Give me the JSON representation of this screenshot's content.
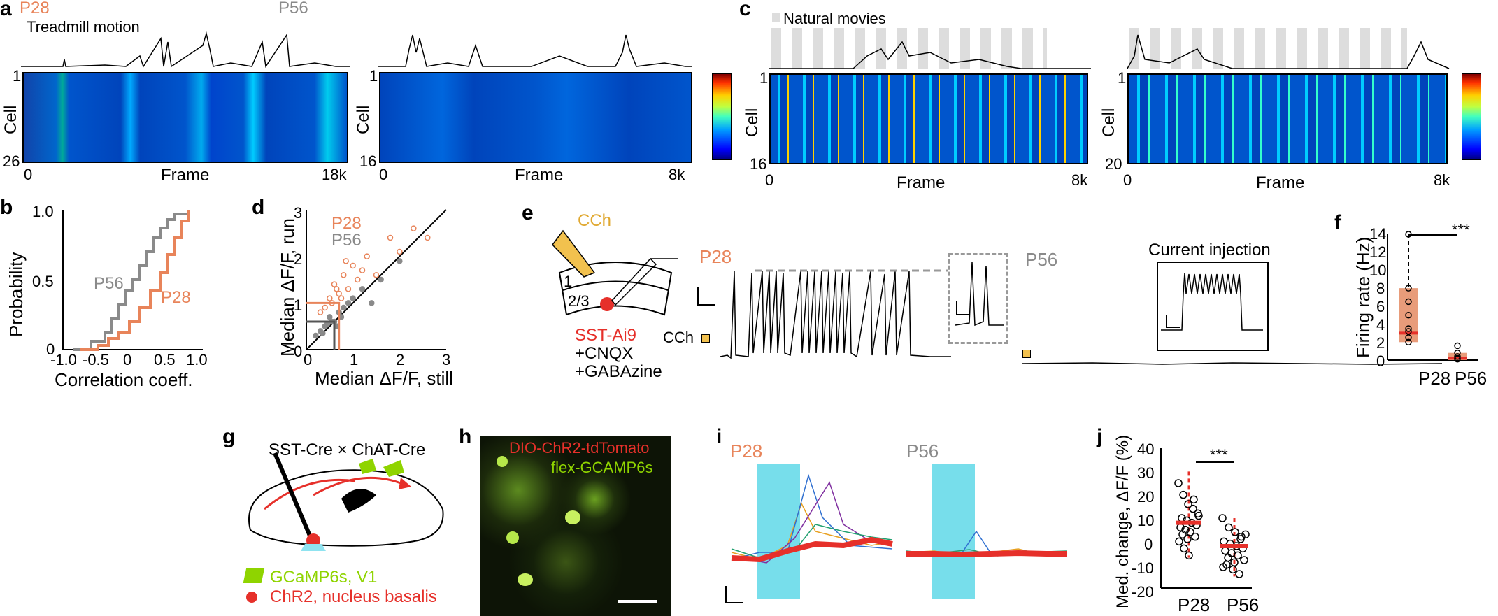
{
  "labels": {
    "a": "a",
    "b": "b",
    "c": "c",
    "d": "d",
    "e": "e",
    "f": "f",
    "g": "g",
    "h": "h",
    "i": "i",
    "j": "j"
  },
  "panel_a": {
    "p28": "P28",
    "p56": "P56",
    "treadmill": "Treadmill motion",
    "cell": "Cell",
    "frame": "Frame",
    "left": {
      "y_top": "1",
      "y_bottom": "26",
      "x_start": "0",
      "x_end": "18k"
    },
    "right": {
      "y_top": "1",
      "y_bottom": "16",
      "x_start": "0",
      "x_end": "8k"
    }
  },
  "panel_c": {
    "natural_movies": "Natural movies",
    "cell": "Cell",
    "frame": "Frame",
    "left": {
      "y_top": "1",
      "y_bottom": "16",
      "x_start": "0",
      "x_end": "8k"
    },
    "right": {
      "y_top": "1",
      "y_bottom": "20",
      "x_start": "0",
      "x_end": "8k"
    }
  },
  "panel_b": {
    "ylabel": "Probability",
    "xlabel": "Correlation coeff.",
    "yticks": [
      "1.0",
      "0.5",
      "0"
    ],
    "xticks": [
      "-1.0",
      "-0.5",
      "0",
      "0.5",
      "1.0"
    ],
    "p56": "P56",
    "p28": "P28"
  },
  "panel_d": {
    "ylabel": "Median ΔF/F, run",
    "xlabel": "Median ΔF/F, still",
    "yticks": [
      "3",
      "2",
      "1",
      "0"
    ],
    "xticks": [
      "0",
      "1",
      "2",
      "3"
    ],
    "p28": "P28",
    "p56": "P56"
  },
  "panel_e": {
    "cch": "CCh",
    "layer1": "1",
    "layer23": "2/3",
    "sst": "SST-Ai9",
    "cnqx": "+CNQX",
    "gabazine": "+GABAzine",
    "p28": "P28",
    "p56": "P56",
    "cch_marker": "CCh",
    "current_injection": "Current injection"
  },
  "panel_f": {
    "ylabel": "Firing rate (Hz)",
    "yticks": [
      "14",
      "12",
      "10",
      "8",
      "6",
      "4",
      "2",
      "0"
    ],
    "p28": "P28",
    "p56": "P56",
    "sig": "***"
  },
  "panel_g": {
    "title": "SST-Cre × ChAT-Cre",
    "legend_gcamp": "GCaMP6s, V1",
    "legend_chr2": "ChR2, nucleus basalis"
  },
  "panel_h": {
    "dio": "DIO-ChR2-tdTomato",
    "flex": "flex-GCAMP6s"
  },
  "panel_i": {
    "p28": "P28",
    "p56": "P56"
  },
  "panel_j": {
    "ylabel": "Med. change, ΔF/F (%)",
    "yticks": [
      "40",
      "30",
      "20",
      "10",
      "0",
      "-10",
      "-20"
    ],
    "p28": "P28",
    "p56": "P56",
    "sig": "***"
  },
  "colors": {
    "p28": "#e8845a",
    "p56": "#8a8a8a",
    "highlight": "#e6302a",
    "light_stim": "#5fd8e8"
  },
  "chart_data": [
    {
      "type": "line",
      "title": "b",
      "xlabel": "Correlation coeff.",
      "ylabel": "Probability",
      "xlim": [
        -1.0,
        1.0
      ],
      "ylim": [
        0,
        1.0
      ],
      "series": [
        {
          "name": "P56",
          "x": [
            -0.85,
            -0.6,
            -0.4,
            -0.3,
            -0.2,
            -0.1,
            0.0,
            0.1,
            0.2,
            0.3,
            0.4,
            0.5,
            0.6,
            0.8
          ],
          "y": [
            0,
            0.06,
            0.12,
            0.22,
            0.32,
            0.42,
            0.5,
            0.6,
            0.7,
            0.8,
            0.87,
            0.93,
            0.97,
            1.0
          ]
        },
        {
          "name": "P28",
          "x": [
            -0.75,
            -0.5,
            -0.35,
            -0.2,
            -0.05,
            0.1,
            0.25,
            0.4,
            0.5,
            0.6,
            0.7,
            0.8
          ],
          "y": [
            0,
            0.03,
            0.08,
            0.12,
            0.2,
            0.3,
            0.42,
            0.55,
            0.68,
            0.8,
            0.92,
            1.0
          ]
        }
      ]
    },
    {
      "type": "scatter",
      "title": "d",
      "xlabel": "Median ΔF/F, still",
      "ylabel": "Median ΔF/F, run",
      "xlim": [
        0,
        3
      ],
      "ylim": [
        0,
        3
      ],
      "series": [
        {
          "name": "P28",
          "x": [
            0.3,
            0.5,
            0.6,
            0.7,
            0.8,
            0.9,
            1.0,
            1.1,
            1.3,
            1.5,
            1.8,
            2.0,
            2.3,
            2.6,
            0.4,
            0.55,
            0.65,
            0.75,
            0.85,
            1.2
          ],
          "y": [
            0.8,
            1.1,
            1.4,
            1.2,
            1.6,
            1.3,
            1.8,
            1.5,
            2.0,
            1.6,
            2.4,
            2.1,
            2.6,
            2.4,
            0.9,
            1.0,
            1.3,
            1.1,
            1.9,
            1.7
          ]
        },
        {
          "name": "P56",
          "x": [
            0.2,
            0.3,
            0.4,
            0.5,
            0.6,
            0.7,
            0.8,
            0.9,
            1.0,
            1.2,
            1.4,
            1.6,
            2.0,
            0.35,
            0.45,
            0.55,
            0.65,
            0.75
          ],
          "y": [
            0.3,
            0.4,
            0.5,
            0.7,
            0.6,
            0.8,
            0.9,
            1.0,
            1.1,
            1.3,
            1.0,
            1.5,
            1.9,
            0.35,
            0.55,
            0.6,
            0.5,
            0.7
          ]
        }
      ]
    },
    {
      "type": "box",
      "title": "f",
      "ylabel": "Firing rate (Hz)",
      "ylim": [
        0,
        14
      ],
      "categories": [
        "P28",
        "P56"
      ],
      "series": [
        {
          "name": "Firing rate",
          "values": [
            3.0,
            0.2
          ]
        }
      ]
    },
    {
      "type": "scatter",
      "title": "j",
      "ylabel": "Med. change, ΔF/F (%)",
      "ylim": [
        -20,
        40
      ],
      "categories": [
        "P28",
        "P56"
      ],
      "series": [
        {
          "name": "Median",
          "values": [
            8,
            -2
          ]
        }
      ]
    }
  ]
}
